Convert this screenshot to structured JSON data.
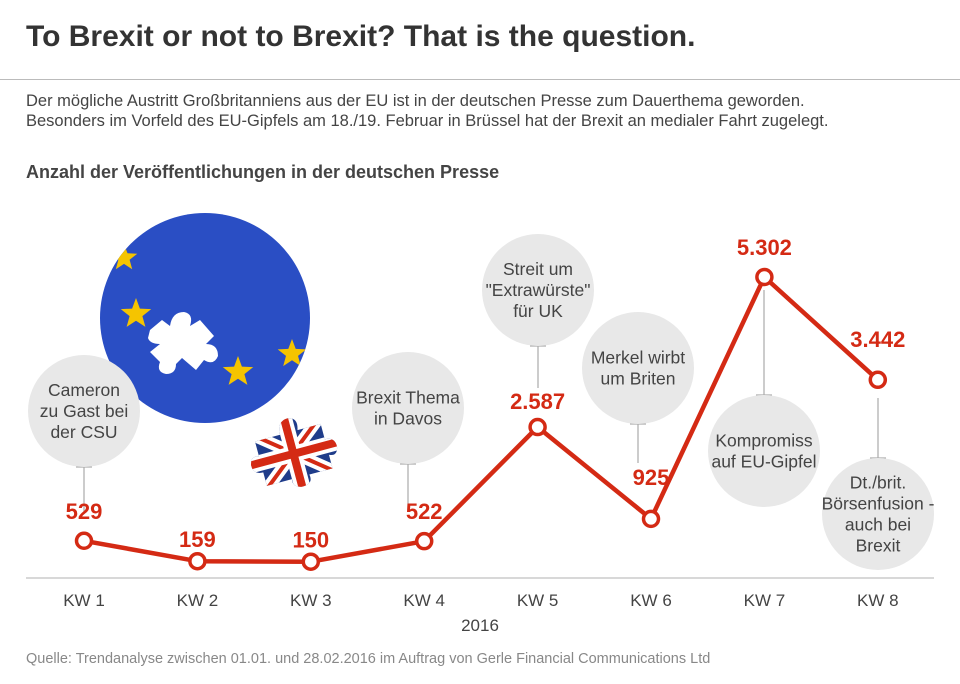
{
  "title": "To Brexit or not to Brexit? That is the question.",
  "subtitle_lines": [
    "Der mögliche Austritt Großbritanniens aus der EU ist in der deutschen Presse zum Dauerthema geworden.",
    "Besonders im Vorfeld des EU-Gipfels am 18./19. Februar in Brüssel hat der Brexit an medialer Fahrt zugelegt."
  ],
  "source": "Quelle: Trendanalyse zwischen 01.01. und 28.02.2016 im Auftrag von Gerle Financial Communications Ltd",
  "colors": {
    "line": "#d42a14",
    "bubble": "#e8e8e8",
    "eu_blue": "#2a4ec4",
    "eu_star": "#f5c400"
  },
  "icons": [
    "eu-flag-globe-icon",
    "union-jack-puzzle-icon"
  ],
  "chart_data": {
    "type": "line",
    "title": "Anzahl der Veröffentlichungen in der deutschen Presse",
    "categories": [
      "KW 1",
      "KW 2",
      "KW 3",
      "KW 4",
      "KW 5",
      "KW 6",
      "KW 7",
      "KW 8"
    ],
    "values": [
      529,
      159,
      150,
      522,
      2587,
      925,
      5302,
      3442
    ],
    "value_labels": [
      "529",
      "159",
      "150",
      "522",
      "2.587",
      "925",
      "5.302",
      "3.442"
    ],
    "xlabel": "2016",
    "ylim": [
      0,
      5302
    ],
    "grid": false,
    "annotations": [
      {
        "category": "KW 1",
        "lines": [
          "Cameron",
          "zu Gast bei",
          "der CSU"
        ]
      },
      {
        "category": "KW 4",
        "lines": [
          "Brexit Thema",
          "in Davos"
        ]
      },
      {
        "category": "KW 5",
        "lines": [
          "Streit um",
          "\"Extrawürste\"",
          "für UK"
        ]
      },
      {
        "category": "KW 6",
        "lines": [
          "Merkel wirbt",
          "um Briten"
        ]
      },
      {
        "category": "KW 7",
        "lines": [
          "Kompromiss",
          "auf EU-Gipfel"
        ]
      },
      {
        "category": "KW 8",
        "lines": [
          "Dt./brit.",
          "Börsenfusion -",
          "auch bei",
          "Brexit"
        ]
      }
    ]
  }
}
